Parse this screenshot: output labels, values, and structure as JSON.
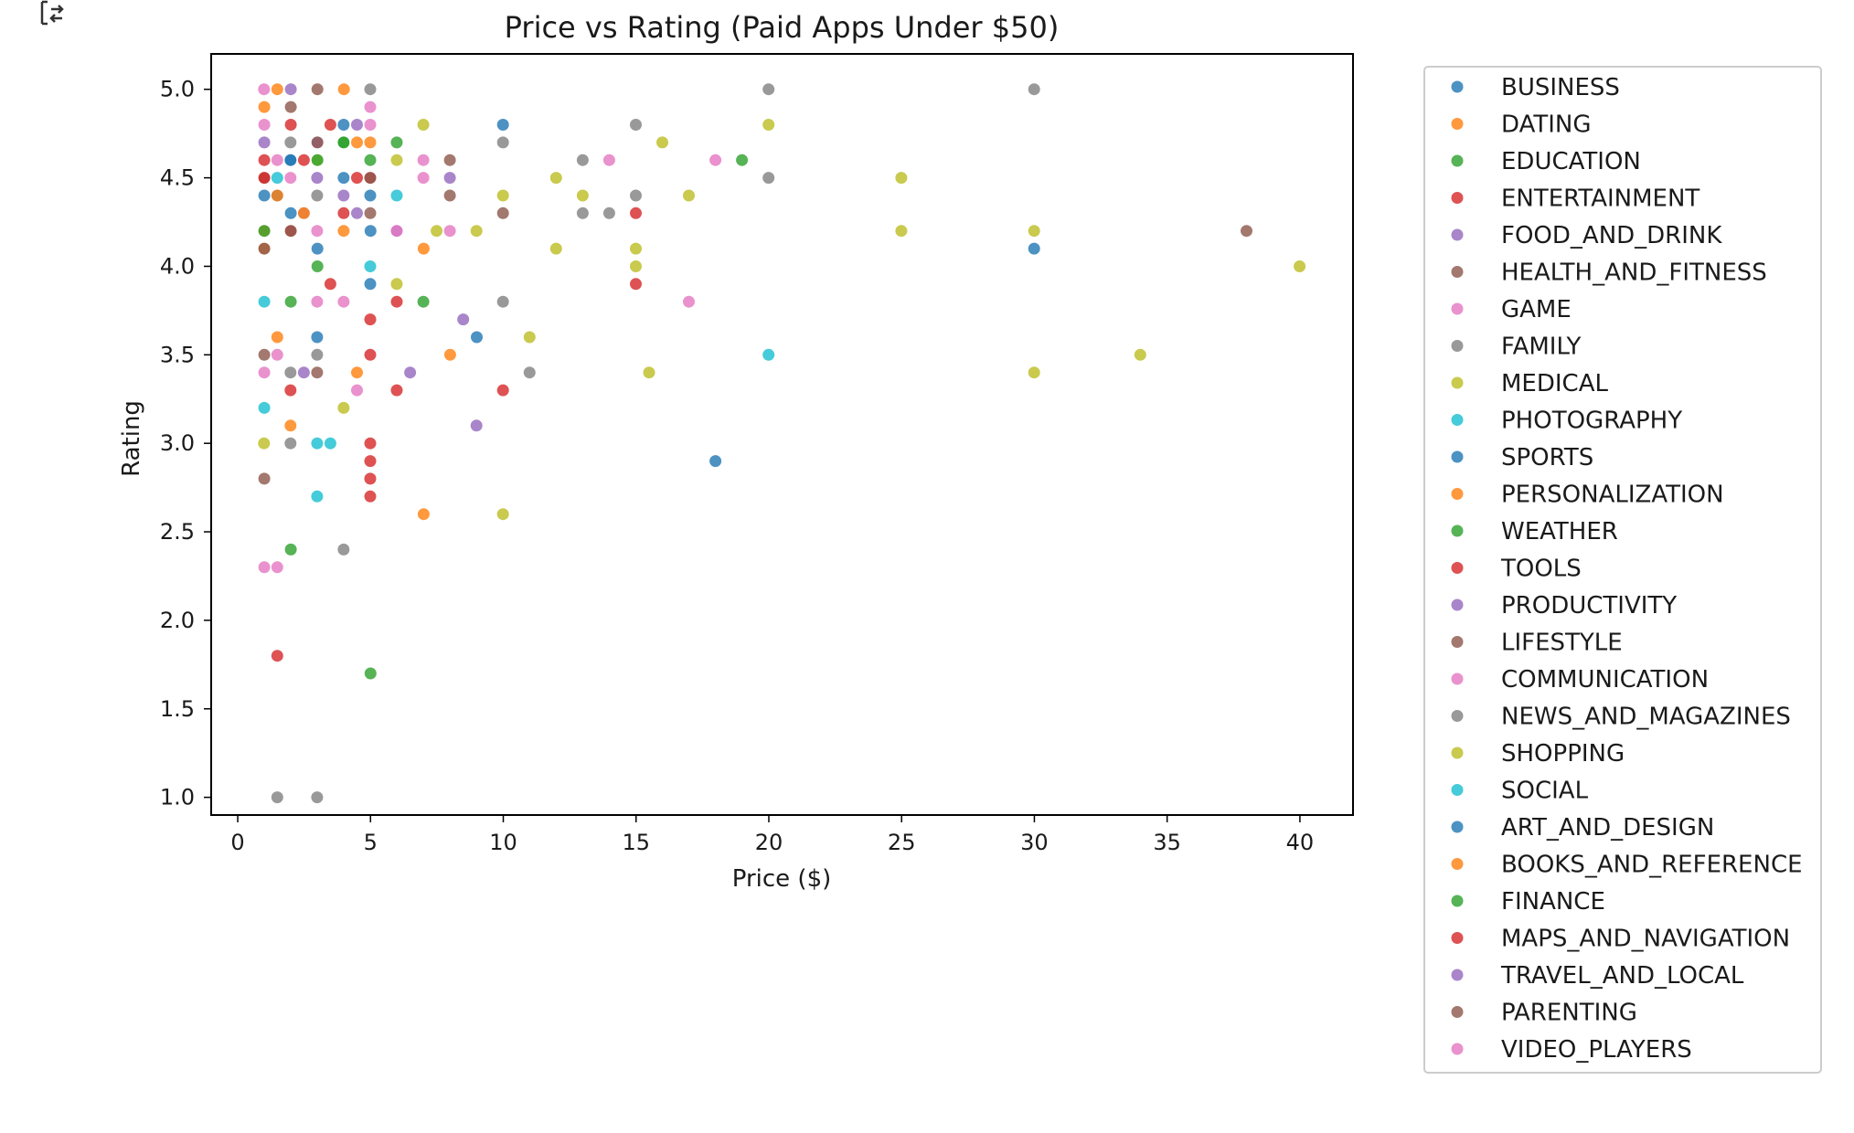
{
  "chart_data": {
    "type": "scatter",
    "title": "Price vs Rating (Paid Apps Under $50)",
    "xlabel": "Price ($)",
    "ylabel": "Rating",
    "xlim": [
      -1,
      42
    ],
    "ylim": [
      0.9,
      5.2
    ],
    "xticks": [
      0,
      5,
      10,
      15,
      20,
      25,
      30,
      35,
      40
    ],
    "yticks": [
      1.0,
      1.5,
      2.0,
      2.5,
      3.0,
      3.5,
      4.0,
      4.5,
      5.0
    ],
    "grid": false,
    "legend_position": "outside-right",
    "series": [
      {
        "name": "BUSINESS",
        "color": "#1f77b4",
        "points": [
          [
            1.49,
            4.4
          ],
          [
            2.0,
            4.6
          ],
          [
            3.99,
            4.5
          ],
          [
            5.0,
            4.2
          ],
          [
            2.99,
            3.6
          ],
          [
            9.0,
            3.6
          ]
        ]
      },
      {
        "name": "DATING",
        "color": "#ff7f0e",
        "points": [
          [
            1.0,
            4.9
          ],
          [
            4.0,
            5.0
          ],
          [
            4.99,
            4.7
          ],
          [
            7.0,
            4.1
          ],
          [
            8.0,
            3.5
          ],
          [
            7.0,
            2.6
          ]
        ]
      },
      {
        "name": "EDUCATION",
        "color": "#2ca02c",
        "points": [
          [
            3.0,
            4.0
          ],
          [
            4.0,
            4.7
          ],
          [
            6.99,
            3.8
          ],
          [
            2.0,
            2.4
          ],
          [
            5.0,
            1.7
          ],
          [
            18.99,
            4.6
          ]
        ]
      },
      {
        "name": "ENTERTAINMENT",
        "color": "#d62728",
        "points": [
          [
            1.0,
            4.6
          ],
          [
            2.0,
            4.8
          ],
          [
            3.49,
            4.8
          ],
          [
            4.99,
            4.5
          ],
          [
            4.99,
            3.7
          ],
          [
            5.99,
            3.3
          ],
          [
            9.99,
            3.3
          ],
          [
            14.99,
            4.3
          ]
        ]
      },
      {
        "name": "FOOD_AND_DRINK",
        "color": "#9467bd",
        "points": [
          [
            1.0,
            4.7
          ],
          [
            2.49,
            4.3
          ],
          [
            4.49,
            4.8
          ],
          [
            5.99,
            4.2
          ],
          [
            8.49,
            3.7
          ],
          [
            8.99,
            3.1
          ]
        ]
      },
      {
        "name": "HEALTH_AND_FITNESS",
        "color": "#8c564b",
        "points": [
          [
            1.0,
            4.5
          ],
          [
            2.0,
            4.9
          ],
          [
            3.0,
            5.0
          ],
          [
            4.99,
            4.3
          ],
          [
            7.99,
            4.6
          ],
          [
            37.99,
            4.2
          ]
        ]
      },
      {
        "name": "GAME",
        "color": "#e377c2",
        "points": [
          [
            0.99,
            5.0
          ],
          [
            1.49,
            4.6
          ],
          [
            2.99,
            4.2
          ],
          [
            4.99,
            4.8
          ],
          [
            6.99,
            4.5
          ],
          [
            13.99,
            4.6
          ],
          [
            16.99,
            3.8
          ],
          [
            17.99,
            4.6
          ],
          [
            1.0,
            2.3
          ]
        ]
      },
      {
        "name": "FAMILY",
        "color": "#7f7f7f",
        "points": [
          [
            1.99,
            4.7
          ],
          [
            2.99,
            4.4
          ],
          [
            4.99,
            5.0
          ],
          [
            9.99,
            4.7
          ],
          [
            12.99,
            4.6
          ],
          [
            14.99,
            4.8
          ],
          [
            19.99,
            5.0
          ],
          [
            29.99,
            5.0
          ],
          [
            19.99,
            4.5
          ],
          [
            1.49,
            1.0
          ],
          [
            2.99,
            1.0
          ]
        ]
      },
      {
        "name": "MEDICAL",
        "color": "#bcbd22",
        "points": [
          [
            3.0,
            4.6
          ],
          [
            5.99,
            4.6
          ],
          [
            6.99,
            4.8
          ],
          [
            9.99,
            4.4
          ],
          [
            11.99,
            4.5
          ],
          [
            15.99,
            4.7
          ],
          [
            19.99,
            4.8
          ],
          [
            24.99,
            4.5
          ],
          [
            29.99,
            4.2
          ],
          [
            39.99,
            4.0
          ],
          [
            33.99,
            3.5
          ],
          [
            29.99,
            3.4
          ],
          [
            15.49,
            3.4
          ],
          [
            9.99,
            2.6
          ],
          [
            3.99,
            3.2
          ]
        ]
      },
      {
        "name": "PHOTOGRAPHY",
        "color": "#17becf",
        "points": [
          [
            1.49,
            4.5
          ],
          [
            4.99,
            4.0
          ],
          [
            5.99,
            4.4
          ],
          [
            19.99,
            3.5
          ],
          [
            2.99,
            2.7
          ],
          [
            3.49,
            3.0
          ],
          [
            1.0,
            3.2
          ]
        ]
      },
      {
        "name": "SPORTS",
        "color": "#1f77b4",
        "points": [
          [
            2.0,
            4.3
          ],
          [
            4.99,
            3.9
          ],
          [
            3.0,
            4.1
          ],
          [
            17.99,
            2.9
          ],
          [
            29.99,
            4.1
          ]
        ]
      },
      {
        "name": "PERSONALIZATION",
        "color": "#ff7f0e",
        "points": [
          [
            1.49,
            5.0
          ],
          [
            0.99,
            4.1
          ],
          [
            1.99,
            3.1
          ],
          [
            1.49,
            3.6
          ],
          [
            4.49,
            3.4
          ],
          [
            3.99,
            4.2
          ]
        ]
      },
      {
        "name": "WEATHER",
        "color": "#2ca02c",
        "points": [
          [
            2.0,
            3.8
          ],
          [
            3.99,
            4.7
          ],
          [
            5.99,
            4.7
          ]
        ]
      },
      {
        "name": "TOOLS",
        "color": "#d62728",
        "points": [
          [
            1.49,
            1.8
          ],
          [
            4.99,
            3.0
          ],
          [
            4.99,
            2.9
          ],
          [
            4.99,
            2.8
          ],
          [
            4.99,
            2.7
          ],
          [
            1.99,
            3.3
          ],
          [
            4.99,
            3.5
          ],
          [
            5.99,
            3.8
          ],
          [
            14.99,
            3.9
          ],
          [
            3.99,
            4.3
          ]
        ]
      },
      {
        "name": "PRODUCTIVITY",
        "color": "#9467bd",
        "points": [
          [
            2.99,
            4.7
          ],
          [
            3.99,
            4.4
          ],
          [
            7.99,
            4.5
          ],
          [
            6.49,
            3.4
          ],
          [
            2.49,
            3.4
          ]
        ]
      },
      {
        "name": "LIFESTYLE",
        "color": "#8c564b",
        "points": [
          [
            1.0,
            3.5
          ],
          [
            1.0,
            2.8
          ],
          [
            2.99,
            3.4
          ],
          [
            7.99,
            4.4
          ],
          [
            9.99,
            4.3
          ]
        ]
      },
      {
        "name": "COMMUNICATION",
        "color": "#e377c2",
        "points": [
          [
            1.0,
            3.4
          ],
          [
            1.49,
            3.5
          ],
          [
            3.99,
            3.8
          ],
          [
            4.49,
            3.3
          ],
          [
            1.49,
            2.3
          ],
          [
            7.99,
            4.2
          ]
        ]
      },
      {
        "name": "NEWS_AND_MAGAZINES",
        "color": "#7f7f7f",
        "points": [
          [
            1.99,
            3.4
          ],
          [
            2.99,
            3.5
          ],
          [
            3.99,
            2.4
          ],
          [
            9.99,
            3.8
          ],
          [
            10.99,
            3.4
          ],
          [
            12.99,
            4.3
          ],
          [
            13.99,
            4.3
          ],
          [
            14.99,
            4.4
          ],
          [
            1.99,
            3.0
          ]
        ]
      },
      {
        "name": "SHOPPING",
        "color": "#bcbd22",
        "points": [
          [
            0.99,
            3.0
          ],
          [
            5.99,
            3.9
          ],
          [
            7.49,
            4.2
          ],
          [
            8.99,
            4.2
          ],
          [
            10.99,
            3.6
          ],
          [
            11.99,
            4.1
          ],
          [
            12.99,
            4.4
          ],
          [
            14.99,
            4.1
          ],
          [
            14.99,
            4.0
          ],
          [
            16.99,
            4.4
          ],
          [
            24.99,
            4.2
          ]
        ]
      },
      {
        "name": "SOCIAL",
        "color": "#17becf",
        "points": [
          [
            1.0,
            3.8
          ],
          [
            2.99,
            3.0
          ]
        ]
      },
      {
        "name": "ART_AND_DESIGN",
        "color": "#1f77b4",
        "points": [
          [
            1.0,
            4.4
          ],
          [
            1.99,
            4.6
          ],
          [
            3.99,
            4.8
          ],
          [
            9.99,
            4.8
          ],
          [
            4.99,
            4.4
          ]
        ]
      },
      {
        "name": "BOOKS_AND_REFERENCE",
        "color": "#ff7f0e",
        "points": [
          [
            1.0,
            4.2
          ],
          [
            2.49,
            4.3
          ],
          [
            4.49,
            4.7
          ],
          [
            1.49,
            4.4
          ]
        ]
      },
      {
        "name": "FINANCE",
        "color": "#2ca02c",
        "points": [
          [
            1.0,
            4.2
          ],
          [
            3.0,
            4.6
          ],
          [
            4.99,
            4.6
          ]
        ]
      },
      {
        "name": "MAPS_AND_NAVIGATION",
        "color": "#d62728",
        "points": [
          [
            1.0,
            4.5
          ],
          [
            1.99,
            4.2
          ],
          [
            2.49,
            4.6
          ],
          [
            3.49,
            3.9
          ],
          [
            4.49,
            4.5
          ]
        ]
      },
      {
        "name": "TRAVEL_AND_LOCAL",
        "color": "#9467bd",
        "points": [
          [
            2.0,
            5.0
          ],
          [
            2.99,
            4.5
          ],
          [
            4.49,
            4.3
          ]
        ]
      },
      {
        "name": "PARENTING",
        "color": "#8c564b",
        "points": [
          [
            1.0,
            4.1
          ],
          [
            2.0,
            4.2
          ],
          [
            3.0,
            4.7
          ],
          [
            4.99,
            4.5
          ]
        ]
      },
      {
        "name": "VIDEO_PLAYERS",
        "color": "#e377c2",
        "points": [
          [
            1.0,
            4.8
          ],
          [
            1.99,
            4.5
          ],
          [
            2.99,
            3.8
          ],
          [
            4.99,
            4.9
          ],
          [
            5.99,
            4.2
          ],
          [
            6.99,
            4.6
          ]
        ]
      }
    ]
  },
  "ui": {
    "corner_icon": "expand-output-icon"
  }
}
